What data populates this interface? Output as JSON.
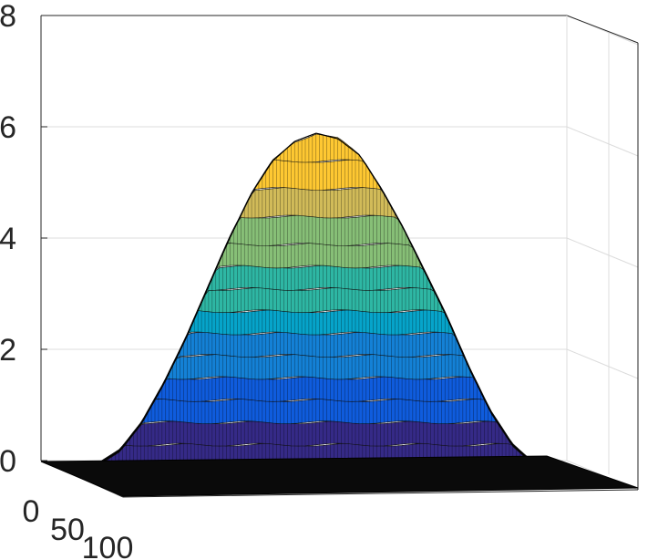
{
  "chart_data": {
    "type": "surface",
    "title": "",
    "xlabel": "",
    "ylabel": "",
    "zlabel": "",
    "colormap": "parula",
    "grid": true,
    "zlim": [
      0,
      8
    ],
    "z_ticks": [
      "0",
      "2",
      "4",
      "6",
      "8"
    ],
    "y_ticks": [
      "0",
      "50",
      "100"
    ],
    "ridge_profile_z": [
      0,
      0,
      0.05,
      0.3,
      0.8,
      1.5,
      2.3,
      3.2,
      4.1,
      4.9,
      5.5,
      5.85,
      6.0,
      5.9,
      5.6,
      5.0,
      4.3,
      3.5,
      2.7,
      1.8,
      1.0,
      0.4,
      0.05,
      0
    ],
    "surface_colors": [
      "#352a87",
      "#0f5cdd",
      "#1481d6",
      "#06a4ca",
      "#2eb7a4",
      "#87bf77",
      "#d1bb59",
      "#fec832",
      "#f9fb0e"
    ]
  }
}
